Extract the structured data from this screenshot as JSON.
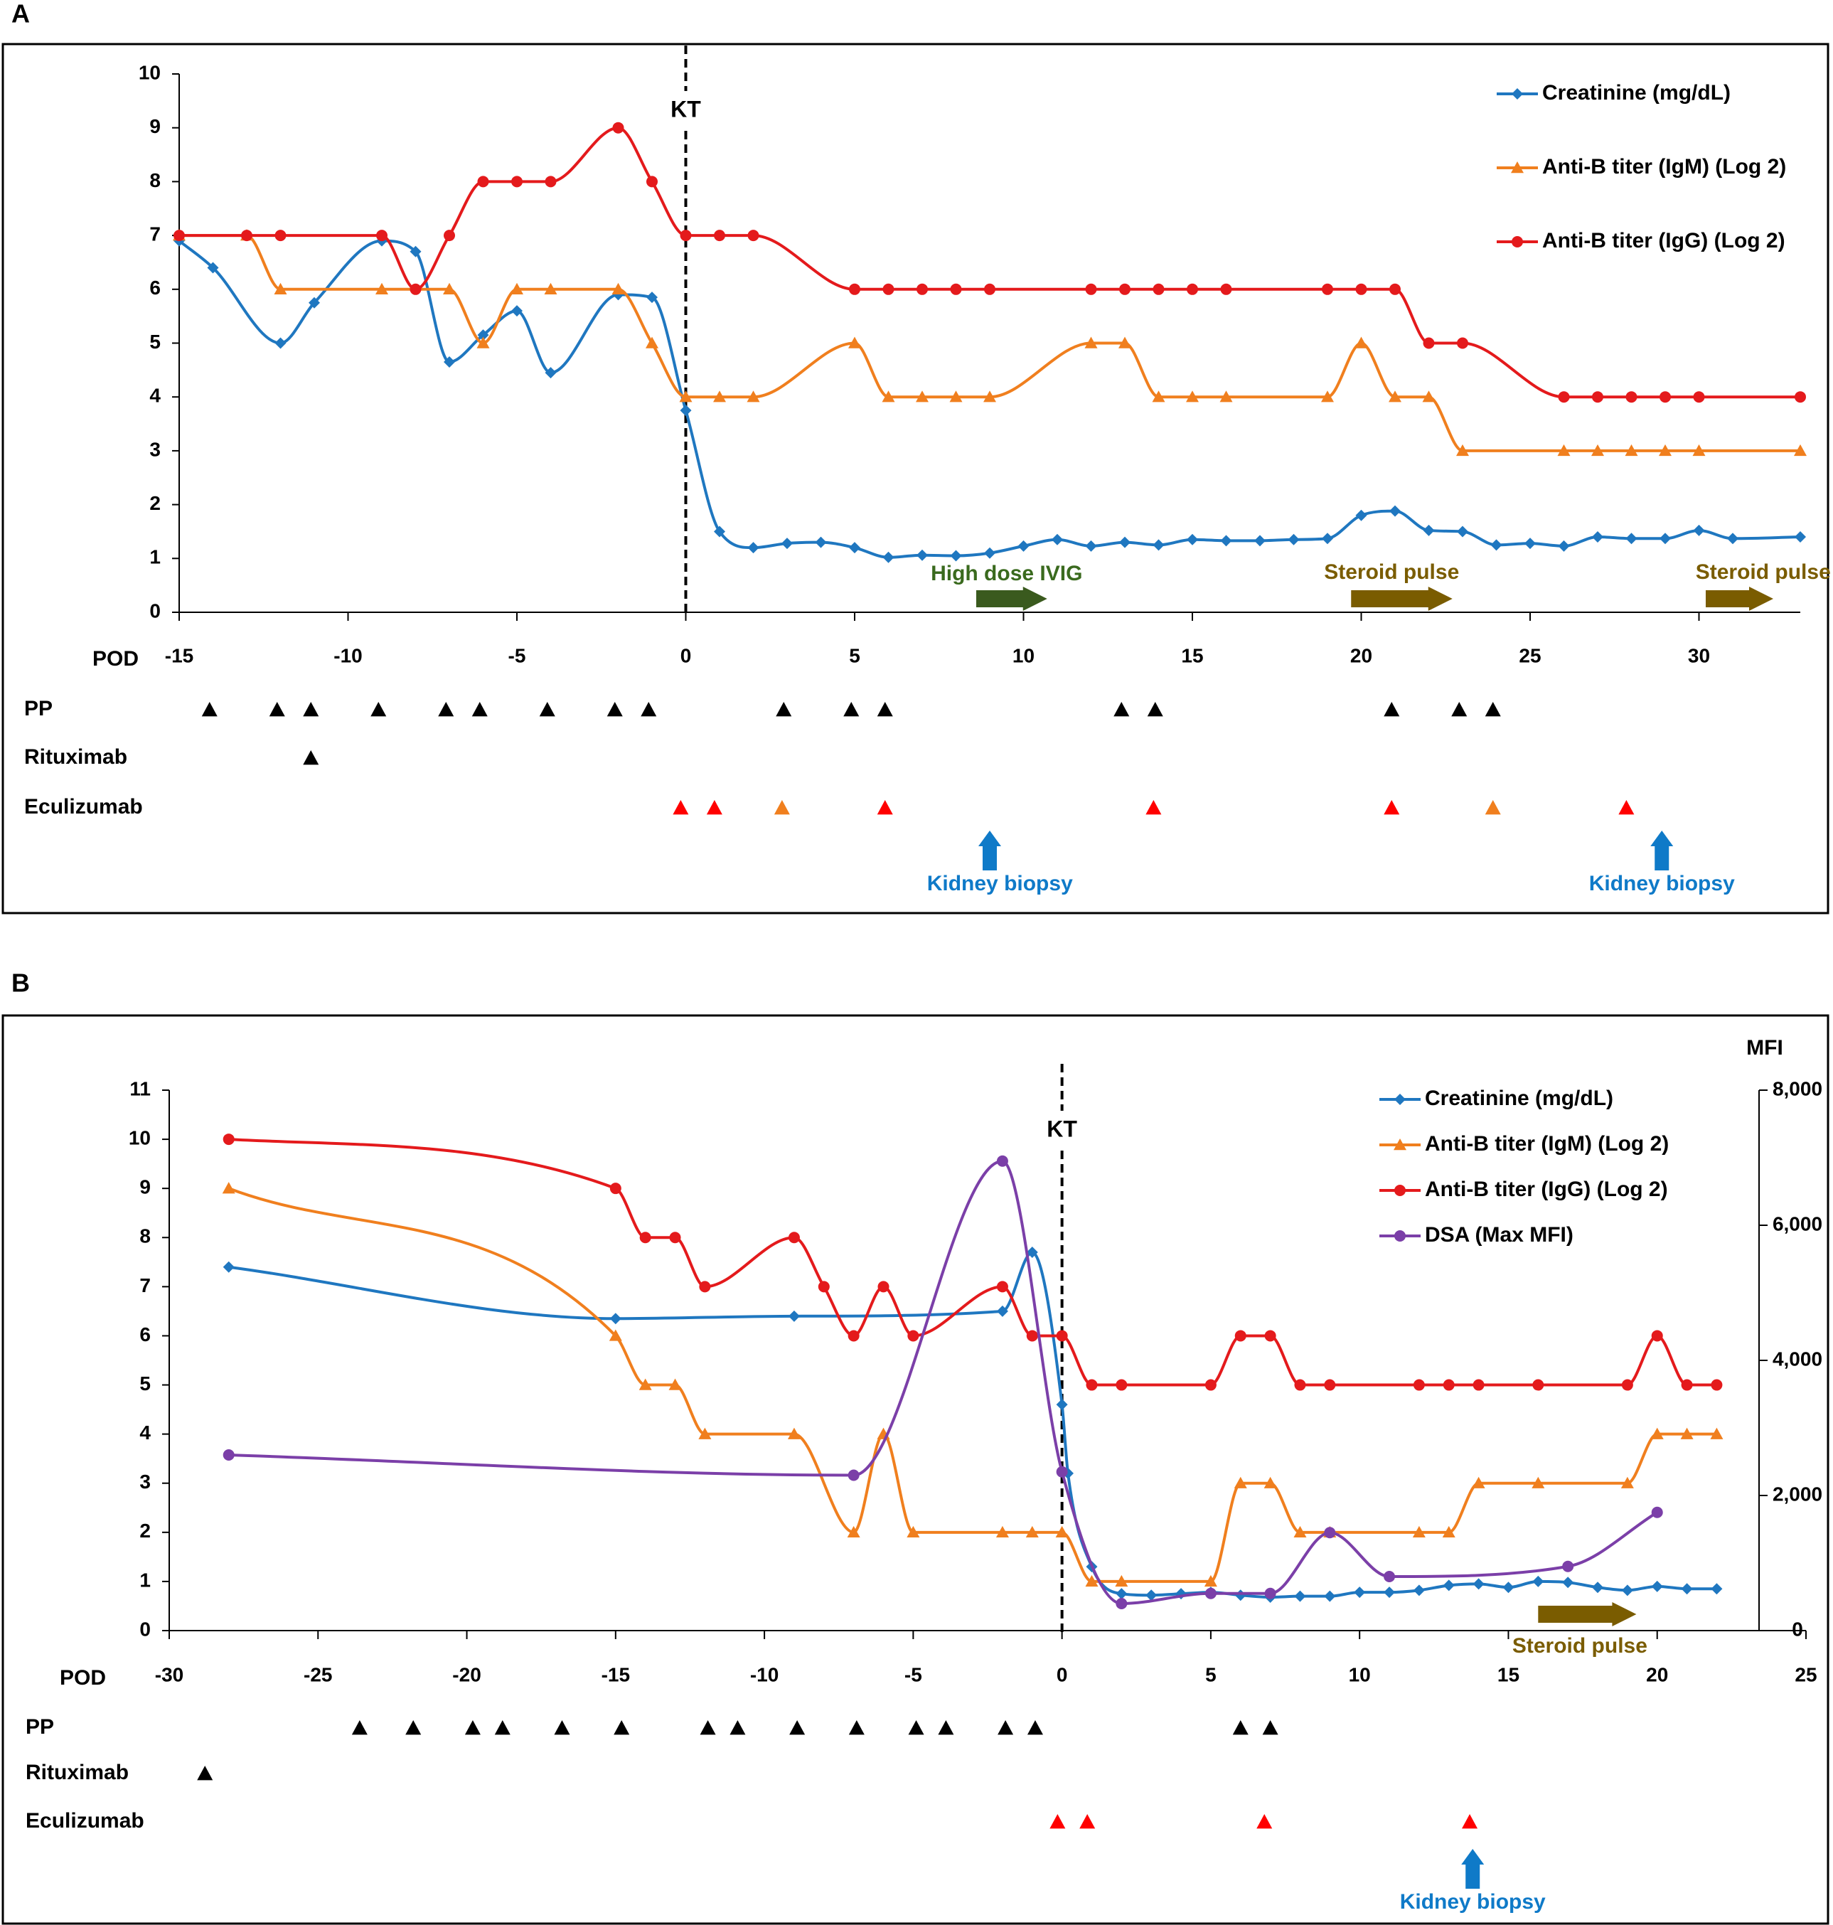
{
  "colors": {
    "creatinine": "#1f77c0",
    "igm": "#f07f1e",
    "igg": "#e41a1c",
    "dsa": "#7b3fa8",
    "pp": "#000000",
    "eculizumab_red": "#ff0000",
    "eculizumab_orange": "#f07f1e",
    "ivig_arrow": "#3a5a1e",
    "steroid_arrow": "#7a5c00",
    "biopsy": "#0f7ac8",
    "ivig_text": "#3a6a1e",
    "steroid_text": "#7a5c00"
  },
  "chart_data": [
    {
      "panel_label": "A",
      "type": "line",
      "xlabel": "POD",
      "xlim": [
        -15,
        33
      ],
      "ylim": [
        0,
        10
      ],
      "x_ticks": [
        "-15",
        "-10",
        "-5",
        "0",
        "5",
        "10",
        "15",
        "20",
        "25",
        "30"
      ],
      "y_ticks": [
        "0",
        "1",
        "2",
        "3",
        "4",
        "5",
        "6",
        "7",
        "8",
        "9",
        "10"
      ],
      "kt_label": "KT",
      "kt_x": 0,
      "legend": [
        "Creatinine (mg/dL)",
        "Anti-B titer (IgM) (Log 2)",
        "Anti-B titer (IgG) (Log 2)"
      ],
      "series": [
        {
          "name": "Creatinine (mg/dL)",
          "key": "creatinine",
          "x": [
            -15,
            -14,
            -12,
            -11,
            -9,
            -8,
            -7,
            -6,
            -5,
            -4,
            -2,
            -1,
            0,
            1,
            2,
            3,
            4,
            5,
            6,
            7,
            8,
            9,
            10,
            11,
            12,
            13,
            14,
            15,
            16,
            17,
            18,
            19,
            20,
            21,
            22,
            23,
            24,
            25,
            26,
            27,
            28,
            29,
            30,
            31,
            33
          ],
          "y": [
            6.9,
            6.4,
            5.0,
            5.75,
            6.9,
            6.7,
            4.65,
            5.15,
            5.6,
            4.45,
            5.9,
            5.85,
            3.75,
            1.5,
            1.2,
            1.28,
            1.3,
            1.2,
            1.02,
            1.06,
            1.05,
            1.1,
            1.23,
            1.35,
            1.23,
            1.3,
            1.25,
            1.35,
            1.33,
            1.33,
            1.35,
            1.37,
            1.8,
            1.88,
            1.52,
            1.5,
            1.25,
            1.28,
            1.23,
            1.4,
            1.37,
            1.37,
            1.52,
            1.37,
            1.4
          ]
        },
        {
          "name": "Anti-B titer (IgM) (Log 2)",
          "key": "igm",
          "x": [
            -15,
            -13,
            -12,
            -9,
            -7,
            -6,
            -5,
            -4,
            -2,
            -1,
            0,
            1,
            2,
            5,
            6,
            7,
            8,
            9,
            12,
            13,
            14,
            15,
            16,
            19,
            20,
            21,
            22,
            23,
            26,
            27,
            28,
            29,
            30,
            33
          ],
          "y": [
            7,
            7,
            6,
            6,
            6,
            5,
            6,
            6,
            6,
            5,
            4,
            4,
            4,
            5,
            4,
            4,
            4,
            4,
            5,
            5,
            4,
            4,
            4,
            4,
            5,
            4,
            4,
            3,
            3,
            3,
            3,
            3,
            3,
            3
          ]
        },
        {
          "name": "Anti-B titer (IgG) (Log 2)",
          "key": "igg",
          "x": [
            -15,
            -13,
            -12,
            -9,
            -8,
            -7,
            -6,
            -5,
            -4,
            -2,
            -1,
            0,
            1,
            2,
            5,
            6,
            7,
            8,
            9,
            12,
            13,
            14,
            15,
            16,
            19,
            20,
            21,
            22,
            23,
            26,
            27,
            28,
            29,
            30,
            33
          ],
          "y": [
            7,
            7,
            7,
            7,
            6,
            7,
            8,
            8,
            8,
            9,
            8,
            7,
            7,
            7,
            6,
            6,
            6,
            6,
            6,
            6,
            6,
            6,
            6,
            6,
            6,
            6,
            6,
            5,
            5,
            4,
            4,
            4,
            4,
            4,
            4
          ]
        }
      ],
      "treatment_rows": [
        {
          "label": "PP",
          "markers": [
            {
              "x": -14.1,
              "color": "pp"
            },
            {
              "x": -12.1,
              "color": "pp"
            },
            {
              "x": -11.1,
              "color": "pp"
            },
            {
              "x": -9.1,
              "color": "pp"
            },
            {
              "x": -7.1,
              "color": "pp"
            },
            {
              "x": -6.1,
              "color": "pp"
            },
            {
              "x": -4.1,
              "color": "pp"
            },
            {
              "x": -2.1,
              "color": "pp"
            },
            {
              "x": -1.1,
              "color": "pp"
            },
            {
              "x": 2.9,
              "color": "pp"
            },
            {
              "x": 4.9,
              "color": "pp"
            },
            {
              "x": 5.9,
              "color": "pp"
            },
            {
              "x": 12.9,
              "color": "pp"
            },
            {
              "x": 13.9,
              "color": "pp"
            },
            {
              "x": 20.9,
              "color": "pp"
            },
            {
              "x": 22.9,
              "color": "pp"
            },
            {
              "x": 23.9,
              "color": "pp"
            }
          ]
        },
        {
          "label": "Rituximab",
          "markers": [
            {
              "x": -11.1,
              "color": "pp"
            }
          ]
        },
        {
          "label": "Eculizumab",
          "markers": [
            {
              "x": -0.15,
              "color": "eculizumab_red"
            },
            {
              "x": 0.85,
              "color": "eculizumab_red"
            },
            {
              "x": 2.85,
              "color": "eculizumab_orange"
            },
            {
              "x": 5.9,
              "color": "eculizumab_red"
            },
            {
              "x": 13.85,
              "color": "eculizumab_red"
            },
            {
              "x": 20.9,
              "color": "eculizumab_red"
            },
            {
              "x": 23.9,
              "color": "eculizumab_orange"
            },
            {
              "x": 27.85,
              "color": "eculizumab_red"
            }
          ]
        }
      ],
      "annotations": [
        {
          "text": "High dose IVIG",
          "kind": "ivig",
          "x0": 8.6,
          "x1": 10.7,
          "text_x": 9.5,
          "level": 1
        },
        {
          "text": "Steroid pulse",
          "kind": "steroid",
          "x0": 19.7,
          "x1": 22.7,
          "text_x": 20.9,
          "level": 1
        },
        {
          "text": "Steroid pulse",
          "kind": "steroid",
          "x0": 30.2,
          "x1": 32.2,
          "text_x": 31.9,
          "level": 1
        },
        {
          "text": "Kidney biopsy",
          "kind": "biopsy",
          "x0": 9,
          "text_x": 9.3,
          "level": 1
        },
        {
          "text": "Kidney biopsy",
          "kind": "biopsy",
          "x0": 28.9,
          "text_x": 28.9,
          "level": 1
        }
      ]
    },
    {
      "panel_label": "B",
      "type": "line",
      "xlabel": "POD",
      "xlim": [
        -30,
        25
      ],
      "ylim": [
        0,
        11
      ],
      "y2label": "MFI",
      "y2lim": [
        0,
        8000
      ],
      "x_ticks": [
        "-30",
        "-25",
        "-20",
        "-15",
        "-10",
        "-5",
        "0",
        "5",
        "10",
        "15",
        "20",
        "25"
      ],
      "y_ticks": [
        "0",
        "1",
        "2",
        "3",
        "4",
        "5",
        "6",
        "7",
        "8",
        "9",
        "10",
        "11"
      ],
      "y2_ticks": [
        "0",
        "2,000",
        "4,000",
        "6,000",
        "8,000"
      ],
      "kt_label": "KT",
      "kt_x": 0,
      "legend": [
        "Creatinine (mg/dL)",
        "Anti-B titer (IgM) (Log 2)",
        "Anti-B titer (IgG) (Log 2)",
        "DSA (Max MFI)"
      ],
      "series": [
        {
          "name": "Creatinine (mg/dL)",
          "key": "creatinine",
          "axis": "left",
          "x": [
            -28,
            -15,
            -9,
            -2,
            -1,
            0,
            0.2,
            1,
            2,
            3,
            4,
            5,
            6,
            7,
            8,
            9,
            10,
            11,
            12,
            13,
            14,
            15,
            16,
            17,
            18,
            19,
            20,
            21,
            22
          ],
          "y": [
            7.4,
            6.35,
            6.4,
            6.5,
            7.7,
            4.6,
            3.2,
            1.3,
            0.75,
            0.72,
            0.75,
            0.78,
            0.72,
            0.68,
            0.7,
            0.7,
            0.78,
            0.78,
            0.82,
            0.92,
            0.95,
            0.88,
            1.0,
            0.98,
            0.88,
            0.82,
            0.9,
            0.85,
            0.85
          ]
        },
        {
          "name": "Anti-B titer (IgM) (Log 2)",
          "key": "igm",
          "axis": "left",
          "x": [
            -28,
            -15,
            -14,
            -13,
            -12,
            -9,
            -7,
            -6,
            -5,
            -2,
            -1,
            0,
            1,
            2,
            5,
            6,
            7,
            8,
            9,
            12,
            13,
            14,
            16,
            19,
            20,
            21,
            22
          ],
          "y": [
            9,
            6,
            5,
            5,
            4,
            4,
            2,
            4,
            2,
            2,
            2,
            2,
            1,
            1,
            1,
            3,
            3,
            2,
            2,
            2,
            2,
            3,
            3,
            3,
            4,
            4,
            4
          ]
        },
        {
          "name": "Anti-B titer (IgG) (Log 2)",
          "key": "igg",
          "axis": "left",
          "x": [
            -28,
            -15,
            -14,
            -13,
            -12,
            -9,
            -8,
            -7,
            -6,
            -5,
            -2,
            -1,
            0,
            1,
            2,
            5,
            6,
            7,
            8,
            9,
            12,
            13,
            14,
            16,
            19,
            20,
            21,
            22
          ],
          "y": [
            10,
            9,
            8,
            8,
            7,
            8,
            7,
            6,
            7,
            6,
            7,
            6,
            6,
            5,
            5,
            5,
            6,
            6,
            5,
            5,
            5,
            5,
            5,
            5,
            5,
            6,
            5,
            5
          ]
        },
        {
          "name": "DSA (Max MFI)",
          "key": "dsa",
          "axis": "right",
          "x": [
            -28,
            -7,
            -2,
            0,
            2,
            5,
            7,
            9,
            11,
            17,
            20
          ],
          "y": [
            2600,
            2300,
            6950,
            2350,
            400,
            550,
            550,
            1450,
            800,
            950,
            1750
          ]
        }
      ],
      "treatment_rows": [
        {
          "label": "PP",
          "markers": [
            {
              "x": -23.6,
              "color": "pp"
            },
            {
              "x": -21.8,
              "color": "pp"
            },
            {
              "x": -19.8,
              "color": "pp"
            },
            {
              "x": -18.8,
              "color": "pp"
            },
            {
              "x": -16.8,
              "color": "pp"
            },
            {
              "x": -14.8,
              "color": "pp"
            },
            {
              "x": -11.9,
              "color": "pp"
            },
            {
              "x": -10.9,
              "color": "pp"
            },
            {
              "x": -8.9,
              "color": "pp"
            },
            {
              "x": -6.9,
              "color": "pp"
            },
            {
              "x": -4.9,
              "color": "pp"
            },
            {
              "x": -3.9,
              "color": "pp"
            },
            {
              "x": -1.9,
              "color": "pp"
            },
            {
              "x": -0.9,
              "color": "pp"
            },
            {
              "x": 6.0,
              "color": "pp"
            },
            {
              "x": 7.0,
              "color": "pp"
            }
          ]
        },
        {
          "label": "Rituximab",
          "markers": [
            {
              "x": -28.8,
              "color": "pp"
            }
          ]
        },
        {
          "label": "Eculizumab",
          "markers": [
            {
              "x": -0.15,
              "color": "eculizumab_red"
            },
            {
              "x": 0.85,
              "color": "eculizumab_red"
            },
            {
              "x": 6.8,
              "color": "eculizumab_red"
            },
            {
              "x": 13.7,
              "color": "eculizumab_red"
            }
          ]
        }
      ],
      "annotations": [
        {
          "text": "Steroid pulse",
          "kind": "steroid",
          "x0": 16,
          "x1": 19.3,
          "text_x": 17.4,
          "level": 2
        },
        {
          "text": "Kidney biopsy",
          "kind": "biopsy",
          "x0": 13.8,
          "text_x": 13.8,
          "level": 2
        }
      ]
    }
  ]
}
